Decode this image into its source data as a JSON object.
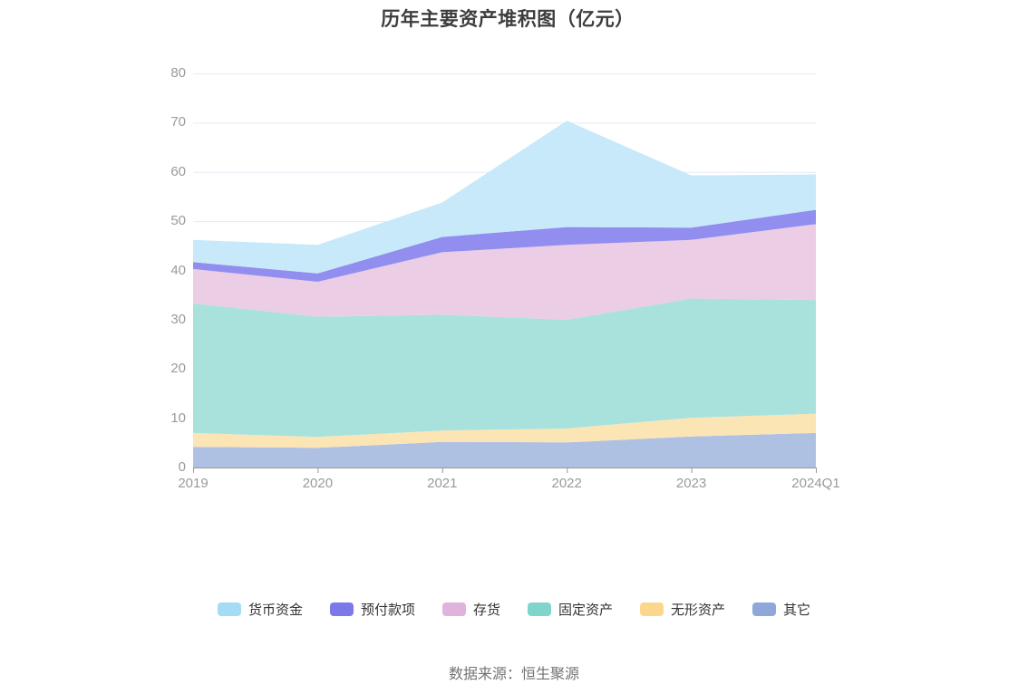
{
  "chart": {
    "title": "历年主要资产堆积图（亿元）",
    "source": "数据来源：恒生聚源"
  },
  "style": {
    "title_color": "#3d3d3d",
    "axis_label_color": "#999aa0",
    "axis_line_color": "#999999",
    "grid_color": "#e7eaf5",
    "legend_text_color": "#333333",
    "source_color": "#737373",
    "background": "#ffffff"
  },
  "chart_data": {
    "type": "area",
    "stacked": true,
    "title": "历年主要资产堆积图（亿元）",
    "categories": [
      "2019",
      "2020",
      "2021",
      "2022",
      "2023",
      "2024Q1"
    ],
    "series": [
      {
        "key": "cash",
        "name": "货币资金",
        "color": "#a4dbf5",
        "area_color": "#c8e9fa",
        "values": [
          4.5,
          5.8,
          7.0,
          21.6,
          10.6,
          7.2
        ]
      },
      {
        "key": "prepayments",
        "name": "预付款项",
        "color": "#7b78ea",
        "area_color": "#918eef",
        "values": [
          1.4,
          1.7,
          3.1,
          3.6,
          2.5,
          2.9
        ]
      },
      {
        "key": "inventory",
        "name": "存货",
        "color": "#dfb3db",
        "area_color": "#eccde6",
        "values": [
          7.0,
          7.1,
          12.7,
          15.2,
          11.9,
          15.4
        ]
      },
      {
        "key": "fixed-assets",
        "name": "固定资产",
        "color": "#7fd4cc",
        "area_color": "#a9e2dd",
        "values": [
          26.3,
          24.4,
          23.5,
          22.1,
          24.2,
          23.1
        ]
      },
      {
        "key": "intangible-assets",
        "name": "无形资产",
        "color": "#fbd78d",
        "area_color": "#fce5b5",
        "values": [
          2.8,
          2.2,
          2.3,
          2.8,
          3.8,
          3.9
        ]
      },
      {
        "key": "other",
        "name": "其它",
        "color": "#90a7d9",
        "area_color": "#afc1e3",
        "values": [
          4.2,
          4.0,
          5.2,
          5.1,
          6.3,
          7.0
        ]
      }
    ],
    "stack_order": "reverse-of-legend (其它 bottom, 货币资金 top)",
    "totals": [
      46.2,
      45.2,
      53.8,
      70.4,
      59.3,
      59.5
    ],
    "xlabel": "",
    "ylabel": "",
    "ylim": [
      0,
      80
    ],
    "yticks": [
      0,
      10,
      20,
      30,
      40,
      50,
      60,
      70,
      80
    ],
    "grid": true,
    "legend_position": "bottom"
  }
}
